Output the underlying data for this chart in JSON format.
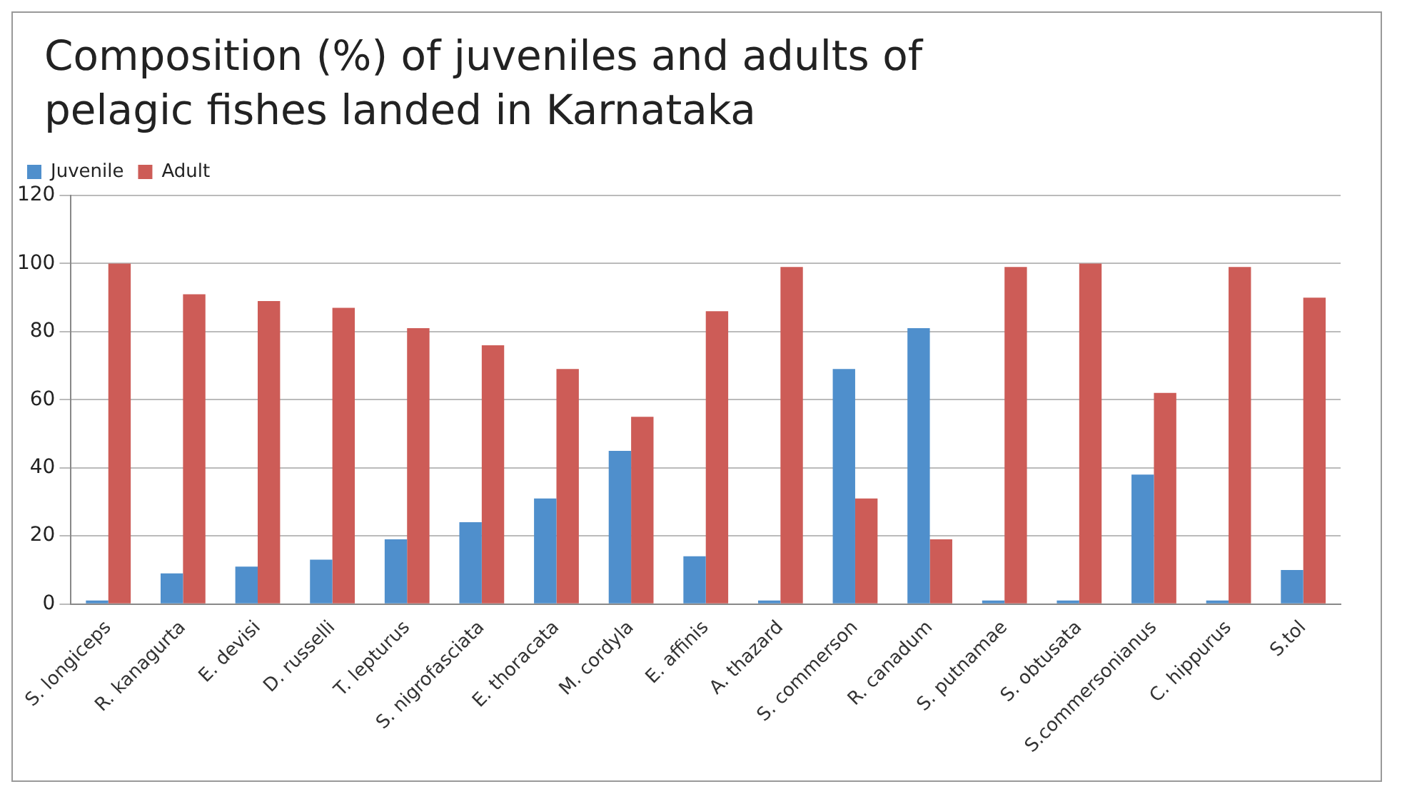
{
  "chart_data": {
    "type": "bar",
    "title": "Composition (%) of juveniles and adults of pelagic fishes landed in Karnataka",
    "categories": [
      "S. longiceps",
      "R. kanagurta",
      "E. devisi",
      "D. russelli",
      "T. lepturus",
      "S. nigrofasciata",
      "E. thoracata",
      "M. cordyla",
      "E. affinis",
      "A. thazard",
      "S. commerson",
      "R. canadum",
      "S. putnamae",
      "S. obtusata",
      "S.commersonianus",
      "C. hippurus",
      "S.tol"
    ],
    "series": [
      {
        "name": "Juvenile",
        "color": "#4f8fcc",
        "values": [
          1,
          9,
          11,
          13,
          19,
          24,
          31,
          45,
          14,
          1,
          69,
          81,
          1,
          1,
          38,
          1,
          10
        ]
      },
      {
        "name": "Adult",
        "color": "#cd5c57",
        "values": [
          100,
          91,
          89,
          87,
          81,
          76,
          69,
          55,
          86,
          99,
          31,
          19,
          99,
          100,
          62,
          99,
          90
        ]
      }
    ],
    "ylim": [
      0,
      120
    ],
    "yticks": [
      0,
      20,
      40,
      60,
      80,
      100,
      120
    ],
    "grid": "y",
    "legend": "top left"
  }
}
